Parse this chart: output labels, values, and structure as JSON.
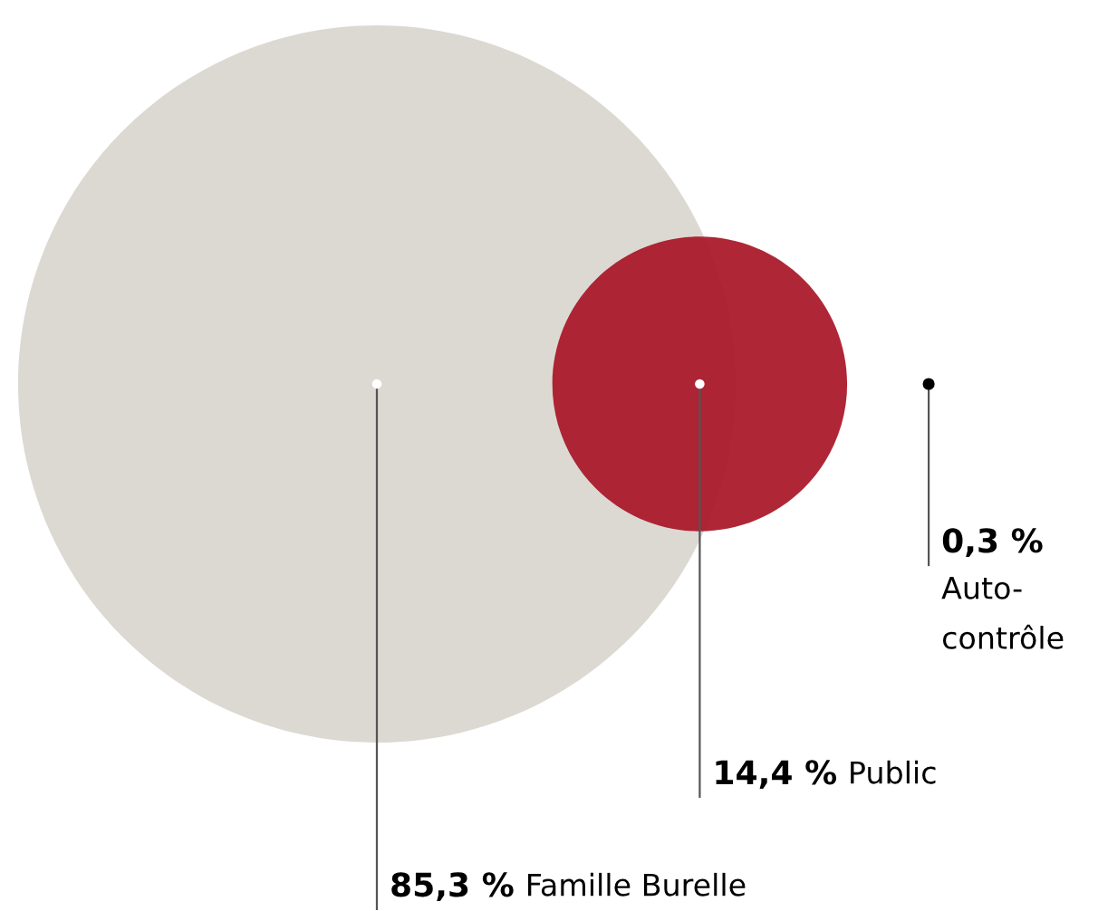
{
  "chart_data": {
    "type": "other",
    "categories": [
      "Famille Burelle",
      "Public",
      "Auto-\ncontrôle"
    ],
    "values": [
      85.3,
      14.4,
      0.3
    ],
    "value_labels": [
      "85,3 %",
      "14,4 %",
      "0,3 %"
    ],
    "colors": [
      "#dcd9d2",
      "#a81526",
      null
    ]
  }
}
